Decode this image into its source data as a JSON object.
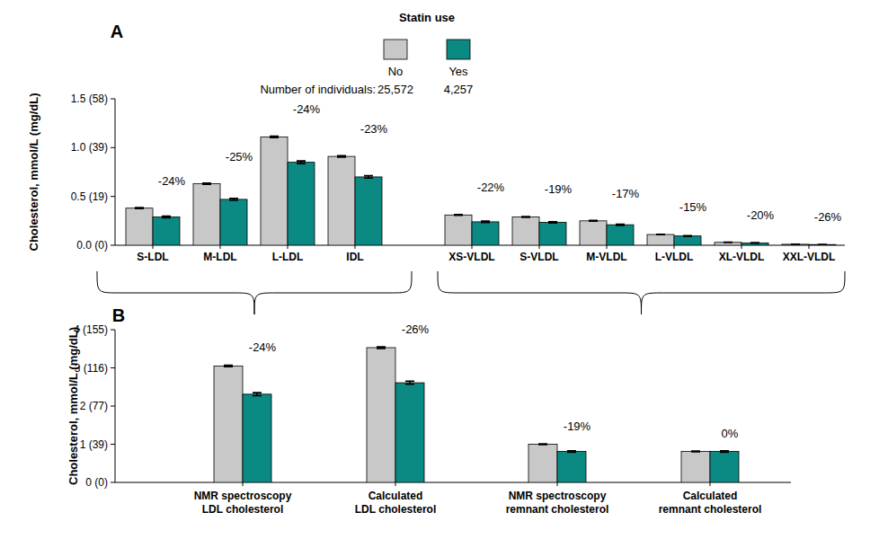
{
  "chart_data": [
    {
      "type": "bar",
      "title": "A",
      "y_label": "Cholesterol, mmol/L (mg/dL)",
      "legend": "top",
      "legend_title": "Statin use",
      "count_title": "Number of individuals:",
      "categories": [
        "S-LDL",
        "M-LDL",
        "L-LDL",
        "IDL",
        "XS-VLDL",
        "S-VLDL",
        "M-VLDL",
        "L-VLDL",
        "XL-VLDL",
        "XXL-VLDL"
      ],
      "series": [
        {
          "name": "No",
          "color": "#c8c8c8",
          "count": 25572,
          "count_label": "25,572",
          "values": [
            0.38,
            0.63,
            1.11,
            0.91,
            0.31,
            0.29,
            0.25,
            0.11,
            0.03,
            0.01
          ],
          "errors": [
            0.005,
            0.006,
            0.008,
            0.007,
            0.004,
            0.004,
            0.004,
            0.002,
            0.001,
            0.001
          ]
        },
        {
          "name": "Yes",
          "color": "#0b8a84",
          "count": 4257,
          "count_label": "4,257",
          "values": [
            0.29,
            0.47,
            0.85,
            0.7,
            0.24,
            0.235,
            0.21,
            0.095,
            0.024,
            0.007
          ],
          "errors": [
            0.008,
            0.01,
            0.014,
            0.012,
            0.007,
            0.007,
            0.006,
            0.004,
            0.002,
            0.001
          ]
        }
      ],
      "change_labels": [
        "-24%",
        "-25%",
        "-24%",
        "-23%",
        "-22%",
        "-19%",
        "-17%",
        "-15%",
        "-20%",
        "-26%"
      ],
      "ylim": [
        0,
        1.5
      ],
      "yticks": [
        {
          "value": 0,
          "label": "0.0 (0)"
        },
        {
          "value": 0.5,
          "label": "0.5 (19)"
        },
        {
          "value": 1.0,
          "label": "1.0 (39)"
        },
        {
          "value": 1.5,
          "label": "1.5 (58)"
        }
      ],
      "grid": false
    },
    {
      "type": "bar",
      "title": "B",
      "y_label": "Cholesterol, mmol/L (mg/dL)",
      "categories": [
        "NMR spectroscopy\nLDL cholesterol",
        "Calculated\nLDL cholesterol",
        "NMR spectroscopy\nremnant cholesterol",
        "Calculated\nremnant cholesterol"
      ],
      "series": [
        {
          "color": "#c8c8c8",
          "values": [
            3.05,
            3.53,
            1.0,
            0.81
          ],
          "errors": [
            0.02,
            0.02,
            0.01,
            0.01
          ]
        },
        {
          "color": "#0b8a84",
          "values": [
            2.31,
            2.61,
            0.81,
            0.81
          ],
          "errors": [
            0.04,
            0.04,
            0.02,
            0.02
          ]
        }
      ],
      "change_labels": [
        "-24%",
        "-26%",
        "-19%",
        "0%"
      ],
      "ylim": [
        0,
        4
      ],
      "yticks": [
        {
          "value": 0,
          "label": "0 (0)"
        },
        {
          "value": 1,
          "label": "1 (39)"
        },
        {
          "value": 2,
          "label": "2 (77)"
        },
        {
          "value": 3,
          "label": "3 (116)"
        },
        {
          "value": 4,
          "label": "4 (155)"
        }
      ],
      "grid": false
    }
  ]
}
